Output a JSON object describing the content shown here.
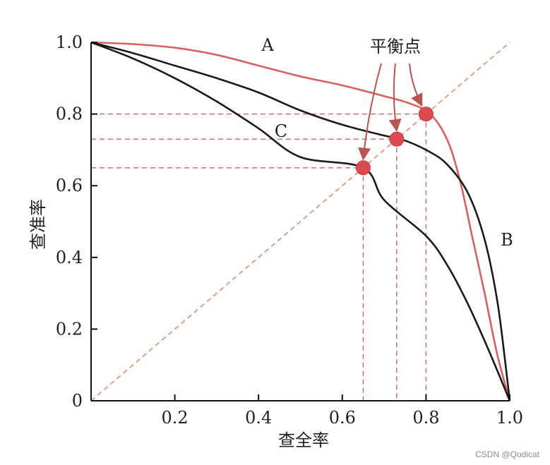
{
  "chart_data": {
    "type": "line",
    "title": "",
    "xlabel": "查全率",
    "ylabel": "查准率",
    "xlim": [
      0,
      1
    ],
    "ylim": [
      0,
      1
    ],
    "x_ticks": [
      "0.2",
      "0.4",
      "0.6",
      "0.8",
      "1.0"
    ],
    "y_ticks": [
      "0",
      "0.2",
      "0.4",
      "0.6",
      "0.8",
      "1.0"
    ],
    "origin_label": "0",
    "grid": false,
    "legend": "none",
    "series": [
      {
        "name": "A",
        "color": "#d9605e",
        "x": [
          0,
          0.1,
          0.2,
          0.3,
          0.4,
          0.5,
          0.6,
          0.7,
          0.76,
          0.81,
          0.85,
          0.88,
          0.91,
          0.94,
          0.97,
          1.0
        ],
        "y": [
          1.0,
          0.995,
          0.985,
          0.965,
          0.935,
          0.905,
          0.88,
          0.85,
          0.83,
          0.8,
          0.73,
          0.62,
          0.46,
          0.3,
          0.13,
          0.0
        ]
      },
      {
        "name": "B",
        "color": "#1a1a1a",
        "x": [
          0,
          0.1,
          0.2,
          0.3,
          0.4,
          0.5,
          0.6,
          0.7,
          0.74,
          0.8,
          0.85,
          0.9,
          0.94,
          0.97,
          0.99,
          1.0
        ],
        "y": [
          1.0,
          0.97,
          0.935,
          0.9,
          0.86,
          0.81,
          0.77,
          0.74,
          0.73,
          0.7,
          0.66,
          0.58,
          0.45,
          0.28,
          0.1,
          0.0
        ]
      },
      {
        "name": "C",
        "color": "#1a1a1a",
        "x": [
          0,
          0.1,
          0.2,
          0.3,
          0.4,
          0.5,
          0.6,
          0.65,
          0.7,
          0.8,
          0.85,
          0.9,
          0.95,
          1.0
        ],
        "y": [
          1.0,
          0.955,
          0.9,
          0.835,
          0.76,
          0.68,
          0.6,
          0.65,
          0.56,
          0.46,
          0.38,
          0.27,
          0.14,
          0.0
        ]
      }
    ],
    "reference_line": {
      "label": "",
      "x": [
        0,
        1
      ],
      "y": [
        0,
        1
      ],
      "color": "#e08a6e"
    },
    "break_even_points": [
      {
        "x": 0.8,
        "y": 0.8
      },
      {
        "x": 0.73,
        "y": 0.73
      },
      {
        "x": 0.65,
        "y": 0.65
      }
    ],
    "annotation": "平衡点",
    "point_color": "#dc4a4f",
    "arrow_color": "#b9554d",
    "guide_color": "#d9605e"
  },
  "watermark": "CSDN @Qodicat"
}
